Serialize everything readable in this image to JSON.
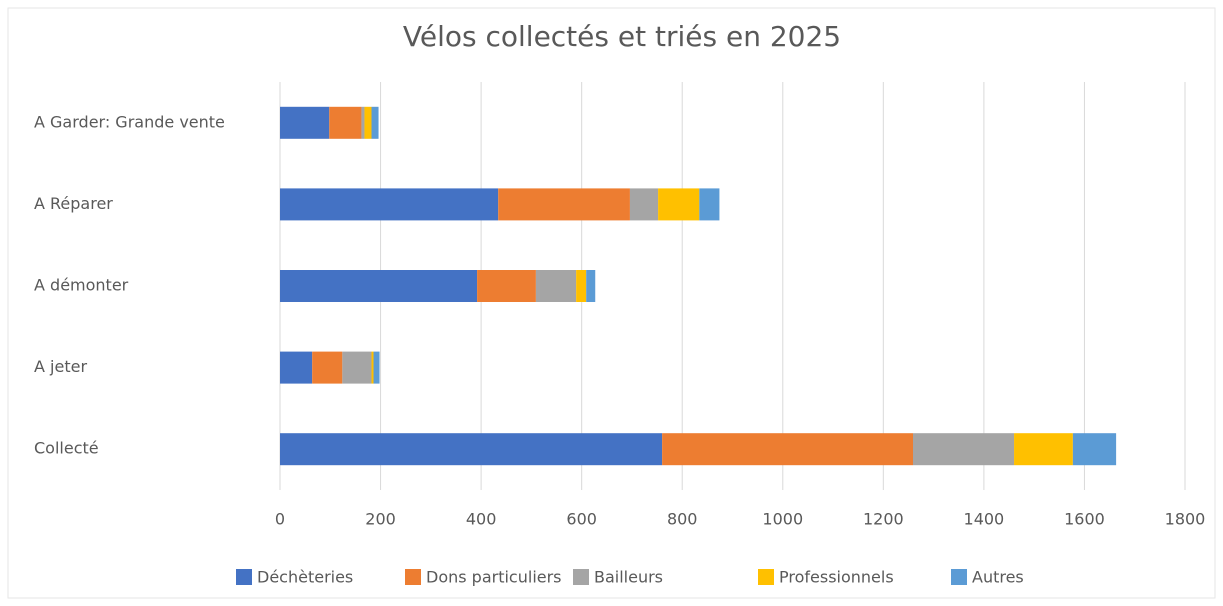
{
  "chart_data": {
    "type": "bar",
    "orientation": "horizontal",
    "stacked": true,
    "title": "Vélos collectés et triés en 2025",
    "categories": [
      "A Garder: Grande vente",
      "A Réparer",
      "A démonter",
      "A jeter",
      "Collecté"
    ],
    "series": [
      {
        "name": "Déchèteries",
        "color": "#4472c4",
        "values": [
          98,
          434,
          392,
          64,
          760
        ]
      },
      {
        "name": "Dons particuliers",
        "color": "#ed7d31",
        "values": [
          64,
          262,
          117,
          60,
          499
        ]
      },
      {
        "name": "Bailleurs",
        "color": "#a5a5a5",
        "values": [
          6,
          56,
          80,
          58,
          201
        ]
      },
      {
        "name": "Professionnels",
        "color": "#ffc000",
        "values": [
          14,
          82,
          20,
          4,
          117
        ]
      },
      {
        "name": "Autres",
        "color": "#5b9bd5",
        "values": [
          14,
          40,
          18,
          12,
          86
        ]
      }
    ],
    "xlim": [
      0,
      1800
    ],
    "xticks": [
      0,
      200,
      400,
      600,
      800,
      1000,
      1200,
      1400,
      1600,
      1800
    ],
    "grid": true,
    "legend": "bottom"
  }
}
